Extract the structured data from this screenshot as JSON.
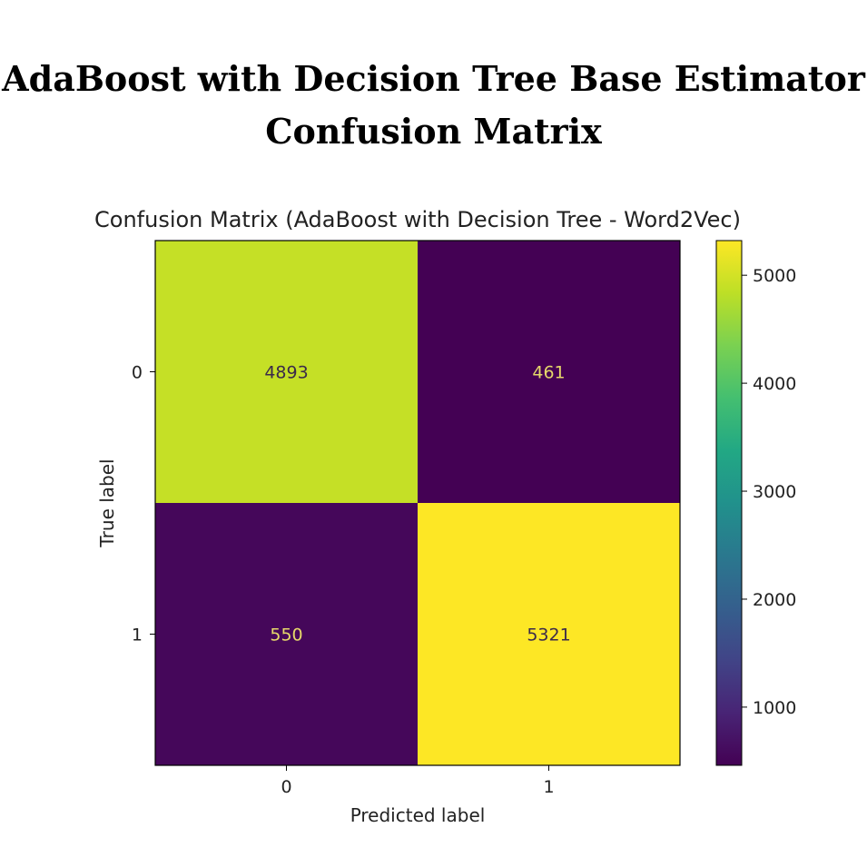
{
  "page": {
    "heading_line1": "AdaBoost with Decision Tree Base Estimator",
    "heading_line2": "Confusion Matrix"
  },
  "chart_data": {
    "type": "heatmap",
    "title": "Confusion Matrix (AdaBoost with Decision Tree - Word2Vec)",
    "xlabel": "Predicted label",
    "ylabel": "True label",
    "x_tick_labels": [
      "0",
      "1"
    ],
    "y_tick_labels": [
      "0",
      "1"
    ],
    "matrix": [
      [
        4893,
        461
      ],
      [
        550,
        5321
      ]
    ],
    "colormap": "viridis",
    "colorbar": {
      "vmin": 461,
      "vmax": 5321,
      "ticks": [
        1000,
        2000,
        3000,
        4000,
        5000
      ],
      "tick_labels": [
        "1000",
        "2000",
        "3000",
        "4000",
        "5000"
      ]
    },
    "grid": false
  }
}
